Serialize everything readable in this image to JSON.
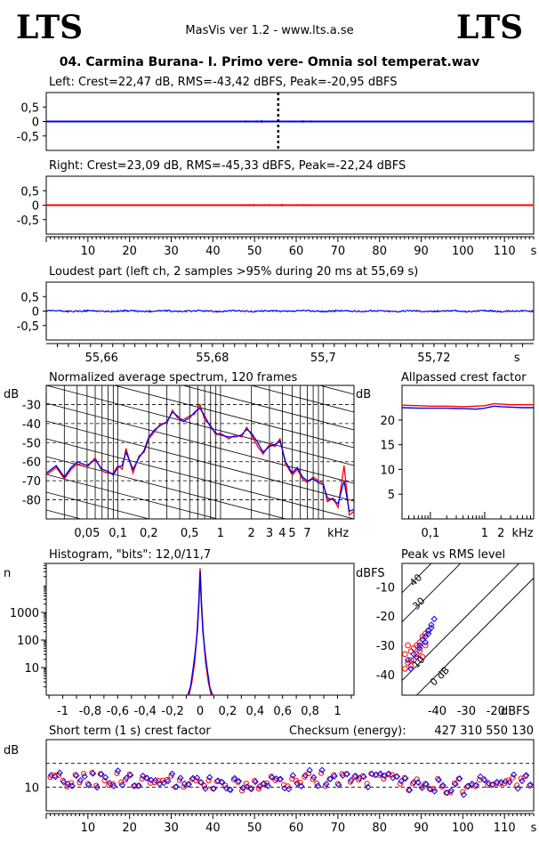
{
  "header": {
    "logo_left": "LTS",
    "logo_right": "LTS",
    "app_title": "MasVis ver 1.2 - www.lts.a.se",
    "file_title": "04. Carmina Burana- I. Primo vere- Omnia sol temperat.wav"
  },
  "colors": {
    "left": "#0000ee",
    "right": "#ff0000",
    "grid": "#000000"
  },
  "chart_data": [
    {
      "type": "line",
      "id": "left-waveform",
      "title": "Left: Crest=22,47 dB, RMS=-43,42 dBFS, Peak=-20,95 dBFS",
      "y_ticks": [
        "0,5",
        "0",
        "-0,5"
      ],
      "ylim": [
        -1,
        1
      ],
      "xlim": [
        0,
        117
      ],
      "marker_x": 55.69,
      "series": [
        {
          "values": [
            0.02,
            0.03,
            0.09,
            0.12
          ]
        }
      ]
    },
    {
      "type": "line",
      "id": "right-waveform",
      "title": "Right: Crest=23,09 dB, RMS=-45,33 dBFS, Peak=-22,24 dBFS",
      "y_ticks": [
        "0,5",
        "0",
        "-0,5"
      ],
      "ylim": [
        -1,
        1
      ],
      "xlim": [
        0,
        117
      ],
      "x_ticks": [
        "10",
        "20",
        "30",
        "40",
        "50",
        "60",
        "70",
        "80",
        "90",
        "100",
        "110",
        "s"
      ],
      "x_tick_values": [
        10,
        20,
        30,
        40,
        50,
        60,
        70,
        80,
        90,
        100,
        110,
        117
      ]
    },
    {
      "type": "line",
      "id": "loudest-part",
      "title": "Loudest part (left  ch, 2 samples >95% during 20 ms at 55,69 s)",
      "y_ticks": [
        "0,5",
        "0",
        "-0,5"
      ],
      "ylim": [
        -1,
        1
      ],
      "xlim": [
        55.65,
        55.738
      ],
      "x_ticks": [
        "55,66",
        "55,68",
        "55,7",
        "55,72",
        "s"
      ],
      "x_tick_values": [
        55.66,
        55.68,
        55.7,
        55.72,
        55.735
      ]
    },
    {
      "type": "line",
      "id": "spectrum",
      "title": "Normalized average spectrum, 120 frames",
      "ylabel": "dB",
      "y_ticks": [
        "-30",
        "-40",
        "-50",
        "-60",
        "-70",
        "-80"
      ],
      "y_tick_values": [
        -30,
        -40,
        -50,
        -60,
        -70,
        -80
      ],
      "ylim": [
        -90,
        -20
      ],
      "xscale": "log",
      "xlim": [
        0.02,
        20
      ],
      "x_ticks": [
        "0,05",
        "0,1",
        "0,2",
        "0,5",
        "1",
        "2",
        "3",
        "4",
        "5",
        "7",
        "kHz"
      ],
      "x_tick_values": [
        0.05,
        0.1,
        0.2,
        0.5,
        1,
        2,
        3,
        4,
        5,
        7,
        14
      ],
      "series": [
        {
          "color": "#ff0000",
          "x": [
            0.02,
            0.025,
            0.03,
            0.035,
            0.04,
            0.05,
            0.06,
            0.07,
            0.08,
            0.09,
            0.1,
            0.11,
            0.12,
            0.14,
            0.16,
            0.18,
            0.2,
            0.23,
            0.26,
            0.3,
            0.34,
            0.38,
            0.43,
            0.5,
            0.56,
            0.63,
            0.7,
            0.8,
            0.9,
            1.0,
            1.2,
            1.4,
            1.6,
            1.8,
            2.0,
            2.3,
            2.6,
            3.0,
            3.4,
            3.8,
            4.3,
            5.0,
            5.6,
            6.3,
            7.0,
            8.0,
            9.0,
            10.0,
            11.0,
            12.5,
            14.0,
            16.0,
            18.0,
            20.0
          ],
          "values": [
            -67,
            -63,
            -69,
            -64,
            -61,
            -63,
            -58,
            -65,
            -66,
            -66,
            -62,
            -64,
            -53,
            -66,
            -57,
            -55,
            -48,
            -44,
            -40,
            -40,
            -33,
            -37,
            -38,
            -36,
            -35,
            -30,
            -38,
            -41,
            -46,
            -45,
            -48,
            -46,
            -47,
            -42,
            -46,
            -52,
            -56,
            -51,
            -52,
            -48,
            -61,
            -67,
            -64,
            -69,
            -71,
            -68,
            -70,
            -71,
            -81,
            -79,
            -84,
            -62,
            -88,
            -86
          ]
        },
        {
          "color": "#0000ee",
          "x": [
            0.02,
            0.025,
            0.03,
            0.035,
            0.04,
            0.05,
            0.06,
            0.07,
            0.08,
            0.09,
            0.1,
            0.11,
            0.12,
            0.14,
            0.16,
            0.18,
            0.2,
            0.23,
            0.26,
            0.3,
            0.34,
            0.38,
            0.43,
            0.5,
            0.56,
            0.63,
            0.7,
            0.8,
            0.9,
            1.0,
            1.2,
            1.4,
            1.6,
            1.8,
            2.0,
            2.3,
            2.6,
            3.0,
            3.4,
            3.8,
            4.3,
            5.0,
            5.6,
            6.3,
            7.0,
            8.0,
            9.0,
            10.0,
            11.0,
            12.5,
            14.0,
            16.0,
            18.0,
            20.0
          ],
          "values": [
            -66,
            -62,
            -68,
            -63,
            -60,
            -62,
            -59,
            -64,
            -65,
            -67,
            -63,
            -62,
            -55,
            -64,
            -58,
            -54,
            -47,
            -43,
            -41,
            -39,
            -34,
            -36,
            -39,
            -37,
            -34,
            -32,
            -36,
            -42,
            -45,
            -46,
            -47,
            -47,
            -46,
            -43,
            -45,
            -50,
            -55,
            -52,
            -51,
            -49,
            -60,
            -66,
            -63,
            -68,
            -70,
            -69,
            -71,
            -72,
            -79,
            -80,
            -82,
            -70,
            -86,
            -85
          ]
        }
      ]
    },
    {
      "type": "line",
      "id": "allpassed-crest",
      "title": "Allpassed crest factor",
      "ylabel": "dB",
      "y_ticks": [
        "20",
        "15",
        "10",
        "5"
      ],
      "y_tick_values": [
        20,
        15,
        10,
        5
      ],
      "ylim": [
        0,
        27
      ],
      "xscale": "log",
      "xlim": [
        0.03,
        8
      ],
      "x_ticks": [
        "0,1",
        "1",
        "2",
        "kHz"
      ],
      "x_tick_values": [
        0.1,
        1,
        2,
        5
      ],
      "series": [
        {
          "color": "#ff0000",
          "x": [
            0.03,
            0.06,
            0.1,
            0.2,
            0.4,
            0.7,
            1,
            1.5,
            2,
            3,
            5,
            8
          ],
          "values": [
            23.0,
            22.9,
            22.8,
            22.8,
            22.7,
            22.8,
            22.9,
            23.3,
            23.2,
            23.1,
            23.1,
            23.1
          ]
        },
        {
          "color": "#0000ee",
          "x": [
            0.03,
            0.06,
            0.1,
            0.2,
            0.4,
            0.7,
            1,
            1.5,
            2,
            3,
            5,
            8
          ],
          "values": [
            22.5,
            22.4,
            22.4,
            22.4,
            22.3,
            22.2,
            22.4,
            22.8,
            22.7,
            22.6,
            22.5,
            22.5
          ]
        }
      ]
    },
    {
      "type": "line",
      "id": "histogram",
      "title": "Histogram, \"bits\": 12,0/11,7",
      "ylabel": "n",
      "yscale": "log",
      "y_ticks": [
        "1000",
        "100",
        "10"
      ],
      "y_tick_values": [
        1000,
        100,
        10
      ],
      "ylim": [
        1,
        60000
      ],
      "xlim": [
        -1.12,
        1.12
      ],
      "x_ticks": [
        "-1",
        "-0,8",
        "-0,6",
        "-0,4",
        "-0,2",
        "0",
        "0,2",
        "0,4",
        "0,6",
        "0,8",
        "1"
      ],
      "x_tick_values": [
        -1,
        -0.8,
        -0.6,
        -0.4,
        -0.2,
        0,
        0.2,
        0.4,
        0.6,
        0.8,
        1
      ],
      "series": [
        {
          "color": "#ff0000",
          "x": [
            -0.08,
            -0.06,
            -0.04,
            -0.03,
            -0.02,
            -0.01,
            0,
            0.01,
            0.02,
            0.03,
            0.04,
            0.06,
            0.08
          ],
          "values": [
            1,
            3,
            15,
            60,
            300,
            2500,
            40000,
            2500,
            300,
            60,
            15,
            3,
            1
          ]
        },
        {
          "color": "#0000ee",
          "x": [
            -0.09,
            -0.07,
            -0.05,
            -0.035,
            -0.02,
            -0.01,
            0,
            0.01,
            0.02,
            0.035,
            0.05,
            0.07,
            0.09
          ],
          "values": [
            1,
            2,
            10,
            40,
            200,
            1800,
            30000,
            1800,
            200,
            40,
            10,
            2,
            1
          ]
        }
      ]
    },
    {
      "type": "scatter",
      "id": "peak-vs-rms",
      "title": "Peak vs RMS level",
      "ylabel": "dBFS",
      "xlabel": "dBFS",
      "y_ticks": [
        "-10",
        "-20",
        "-30",
        "-40"
      ],
      "y_tick_values": [
        -10,
        -20,
        -30,
        -40
      ],
      "ylim": [
        -47,
        -2
      ],
      "xlim": [
        -52,
        -7
      ],
      "x_ticks": [
        "-40",
        "-30",
        "-20"
      ],
      "x_tick_values": [
        -40,
        -30,
        -20
      ],
      "diagonal_labels": [
        "40",
        "30",
        "10",
        "0 dB"
      ],
      "diagonal_offsets": [
        40,
        30,
        10,
        0
      ],
      "series": [
        {
          "color": "#ff0000",
          "x": [
            -51,
            -50,
            -49,
            -48,
            -47,
            -46,
            -45,
            -44,
            -43,
            -45,
            -49,
            -50,
            -47,
            -46,
            -44,
            -48,
            -51,
            -49
          ],
          "y": [
            -33,
            -36,
            -35,
            -31,
            -30,
            -29,
            -27,
            -26,
            -25,
            -34,
            -37,
            -30,
            -33,
            -32,
            -30,
            -35,
            -38,
            -32
          ]
        },
        {
          "color": "#0000ee",
          "x": [
            -50,
            -48,
            -46,
            -45,
            -44,
            -43,
            -42,
            -41,
            -44,
            -47,
            -49,
            -46,
            -43,
            -42
          ],
          "y": [
            -35,
            -33,
            -30,
            -28,
            -27,
            -25,
            -23,
            -21,
            -29,
            -34,
            -38,
            -31,
            -26,
            -24
          ]
        }
      ]
    },
    {
      "type": "scatter",
      "id": "short-term-crest",
      "title": "Short term (1 s) crest factor",
      "checksum_label": "Checksum (energy):",
      "checksum_value": "427 310 550 130",
      "ylabel": "dB",
      "y_ticks": [
        "10"
      ],
      "y_tick_values": [
        10
      ],
      "ylim": [
        0,
        30
      ],
      "xlim": [
        0,
        117
      ],
      "x_ticks": [
        "10",
        "20",
        "30",
        "40",
        "50",
        "60",
        "70",
        "80",
        "90",
        "100",
        "110",
        "s"
      ],
      "x_tick_values": [
        10,
        20,
        30,
        40,
        50,
        60,
        70,
        80,
        90,
        100,
        110,
        117
      ],
      "dashed_levels": [
        10,
        20
      ]
    }
  ]
}
